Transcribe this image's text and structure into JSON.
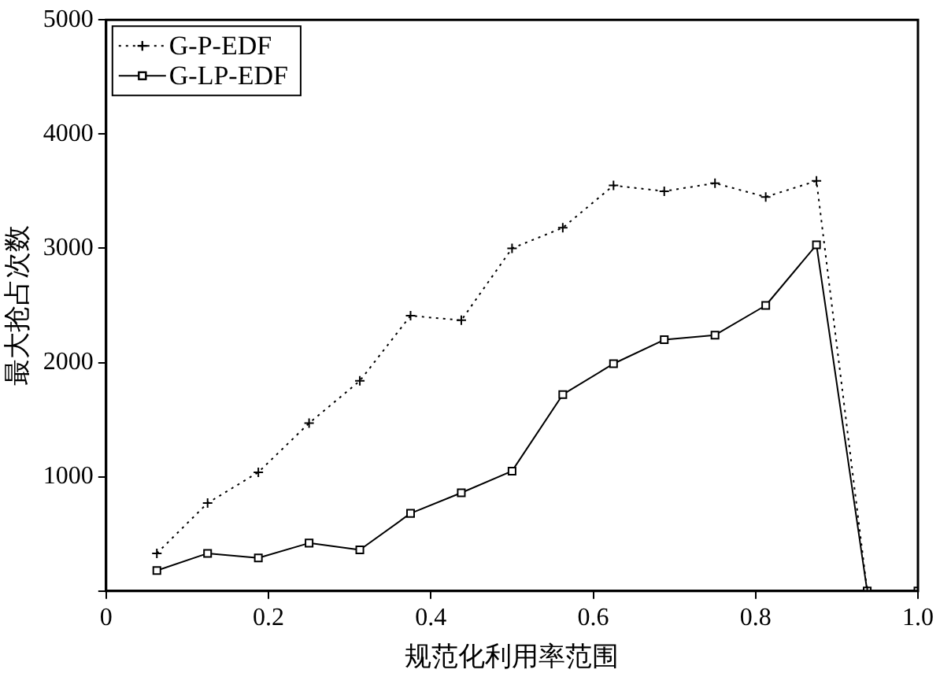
{
  "chart_data": {
    "type": "line",
    "xlabel": "规范化利用率范围",
    "ylabel": "最大抢占次数",
    "x": [
      0.0625,
      0.125,
      0.1875,
      0.25,
      0.3125,
      0.375,
      0.4375,
      0.5,
      0.5625,
      0.625,
      0.6875,
      0.75,
      0.8125,
      0.875,
      0.9375,
      1.0
    ],
    "series": [
      {
        "name": "G-P-EDF",
        "color": "#000000",
        "marker": "cross",
        "line_style": "dotted",
        "values": [
          330,
          770,
          1040,
          1470,
          1840,
          2410,
          2370,
          3000,
          3180,
          3550,
          3500,
          3570,
          3450,
          3590,
          0,
          0
        ]
      },
      {
        "name": "G-LP-EDF",
        "color": "#000000",
        "marker": "square",
        "line_style": "solid",
        "values": [
          180,
          330,
          290,
          420,
          360,
          680,
          860,
          1050,
          1720,
          1990,
          2200,
          2240,
          2500,
          3030,
          0,
          0
        ]
      }
    ],
    "xlim": [
      0,
      1.0
    ],
    "xticks": [
      0,
      0.2,
      0.4,
      0.6,
      0.8,
      {
        "value": 1.0,
        "label": "1.0"
      }
    ],
    "ylim": [
      0,
      5000
    ],
    "yticks": [
      {
        "value": 0,
        "label": null
      },
      1000,
      2000,
      3000,
      4000,
      5000
    ],
    "grid": false,
    "legend": "top left"
  }
}
